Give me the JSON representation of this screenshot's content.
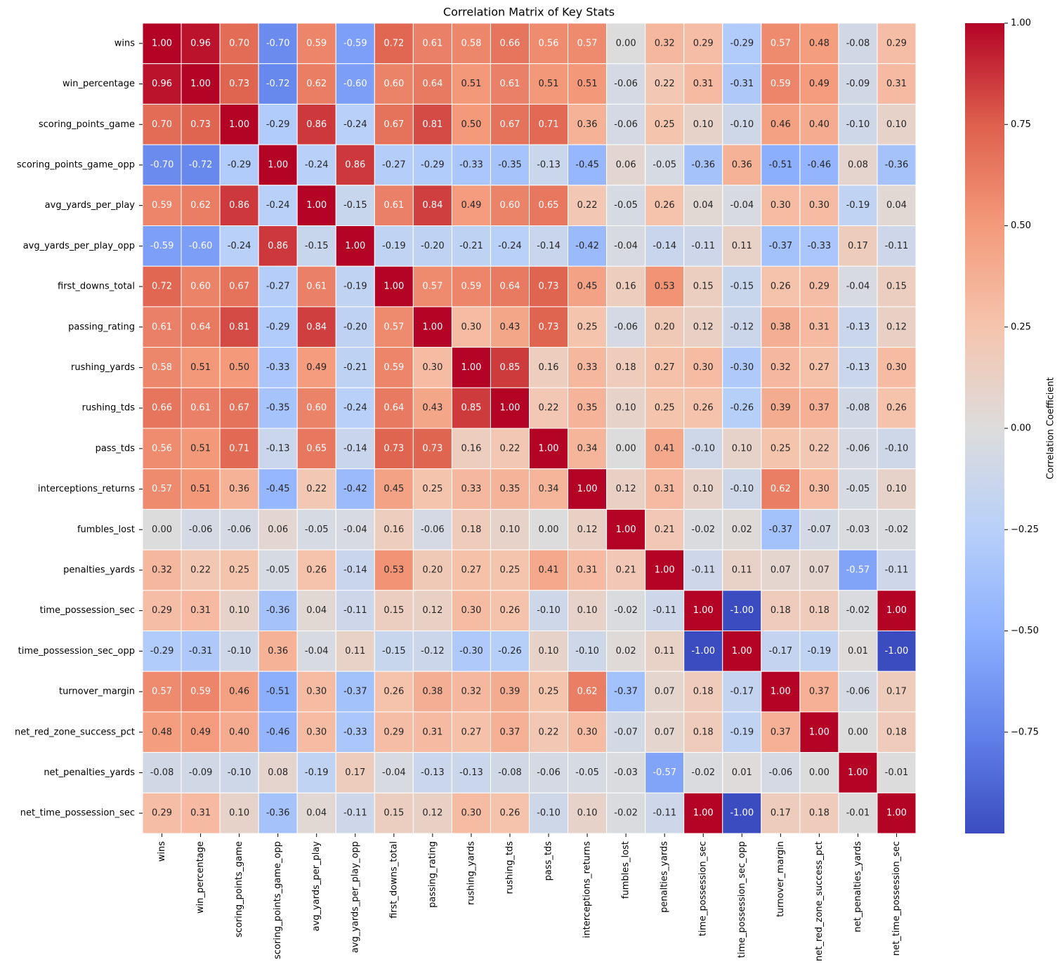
{
  "chart_data": {
    "type": "heatmap",
    "title": "Correlation Matrix of Key Stats",
    "x": [
      "wins",
      "win_percentage",
      "scoring_points_game",
      "scoring_points_game_opp",
      "avg_yards_per_play",
      "avg_yards_per_play_opp",
      "first_downs_total",
      "passing_rating",
      "rushing_yards",
      "rushing_tds",
      "pass_tds",
      "interceptions_returns",
      "fumbles_lost",
      "penalties_yards",
      "time_possession_sec",
      "time_possession_sec_opp",
      "turnover_margin",
      "net_red_zone_success_pct",
      "net_penalties_yards",
      "net_time_possession_sec"
    ],
    "y": [
      "wins",
      "win_percentage",
      "scoring_points_game",
      "scoring_points_game_opp",
      "avg_yards_per_play",
      "avg_yards_per_play_opp",
      "first_downs_total",
      "passing_rating",
      "rushing_yards",
      "rushing_tds",
      "pass_tds",
      "interceptions_returns",
      "fumbles_lost",
      "penalties_yards",
      "time_possession_sec",
      "time_possession_sec_opp",
      "turnover_margin",
      "net_red_zone_success_pct",
      "net_penalties_yards",
      "net_time_possession_sec"
    ],
    "values": [
      [
        1.0,
        0.96,
        0.7,
        -0.7,
        0.59,
        -0.59,
        0.72,
        0.61,
        0.58,
        0.66,
        0.56,
        0.57,
        0.0,
        0.32,
        0.29,
        -0.29,
        0.57,
        0.48,
        -0.08,
        0.29
      ],
      [
        0.96,
        1.0,
        0.73,
        -0.72,
        0.62,
        -0.6,
        0.6,
        0.64,
        0.51,
        0.61,
        0.51,
        0.51,
        -0.06,
        0.22,
        0.31,
        -0.31,
        0.59,
        0.49,
        -0.09,
        0.31
      ],
      [
        0.7,
        0.73,
        1.0,
        -0.29,
        0.86,
        -0.24,
        0.67,
        0.81,
        0.5,
        0.67,
        0.71,
        0.36,
        -0.06,
        0.25,
        0.1,
        -0.1,
        0.46,
        0.4,
        -0.1,
        0.1
      ],
      [
        -0.7,
        -0.72,
        -0.29,
        1.0,
        -0.24,
        0.86,
        -0.27,
        -0.29,
        -0.33,
        -0.35,
        -0.13,
        -0.45,
        0.06,
        -0.05,
        -0.36,
        0.36,
        -0.51,
        -0.46,
        0.08,
        -0.36
      ],
      [
        0.59,
        0.62,
        0.86,
        -0.24,
        1.0,
        -0.15,
        0.61,
        0.84,
        0.49,
        0.6,
        0.65,
        0.22,
        -0.05,
        0.26,
        0.04,
        -0.04,
        0.3,
        0.3,
        -0.19,
        0.04
      ],
      [
        -0.59,
        -0.6,
        -0.24,
        0.86,
        -0.15,
        1.0,
        -0.19,
        -0.2,
        -0.21,
        -0.24,
        -0.14,
        -0.42,
        -0.04,
        -0.14,
        -0.11,
        0.11,
        -0.37,
        -0.33,
        0.17,
        -0.11
      ],
      [
        0.72,
        0.6,
        0.67,
        -0.27,
        0.61,
        -0.19,
        1.0,
        0.57,
        0.59,
        0.64,
        0.73,
        0.45,
        0.16,
        0.53,
        0.15,
        -0.15,
        0.26,
        0.29,
        -0.04,
        0.15
      ],
      [
        0.61,
        0.64,
        0.81,
        -0.29,
        0.84,
        -0.2,
        0.57,
        1.0,
        0.3,
        0.43,
        0.73,
        0.25,
        -0.06,
        0.2,
        0.12,
        -0.12,
        0.38,
        0.31,
        -0.13,
        0.12
      ],
      [
        0.58,
        0.51,
        0.5,
        -0.33,
        0.49,
        -0.21,
        0.59,
        0.3,
        1.0,
        0.85,
        0.16,
        0.33,
        0.18,
        0.27,
        0.3,
        -0.3,
        0.32,
        0.27,
        -0.13,
        0.3
      ],
      [
        0.66,
        0.61,
        0.67,
        -0.35,
        0.6,
        -0.24,
        0.64,
        0.43,
        0.85,
        1.0,
        0.22,
        0.35,
        0.1,
        0.25,
        0.26,
        -0.26,
        0.39,
        0.37,
        -0.08,
        0.26
      ],
      [
        0.56,
        0.51,
        0.71,
        -0.13,
        0.65,
        -0.14,
        0.73,
        0.73,
        0.16,
        0.22,
        1.0,
        0.34,
        0.0,
        0.41,
        -0.1,
        0.1,
        0.25,
        0.22,
        -0.06,
        -0.1
      ],
      [
        0.57,
        0.51,
        0.36,
        -0.45,
        0.22,
        -0.42,
        0.45,
        0.25,
        0.33,
        0.35,
        0.34,
        1.0,
        0.12,
        0.31,
        0.1,
        -0.1,
        0.62,
        0.3,
        -0.05,
        0.1
      ],
      [
        0.0,
        -0.06,
        -0.06,
        0.06,
        -0.05,
        -0.04,
        0.16,
        -0.06,
        0.18,
        0.1,
        0.0,
        0.12,
        1.0,
        0.21,
        -0.02,
        0.02,
        -0.37,
        -0.07,
        -0.03,
        -0.02
      ],
      [
        0.32,
        0.22,
        0.25,
        -0.05,
        0.26,
        -0.14,
        0.53,
        0.2,
        0.27,
        0.25,
        0.41,
        0.31,
        0.21,
        1.0,
        -0.11,
        0.11,
        0.07,
        0.07,
        -0.57,
        -0.11
      ],
      [
        0.29,
        0.31,
        0.1,
        -0.36,
        0.04,
        -0.11,
        0.15,
        0.12,
        0.3,
        0.26,
        -0.1,
        0.1,
        -0.02,
        -0.11,
        1.0,
        -1.0,
        0.18,
        0.18,
        -0.02,
        1.0
      ],
      [
        -0.29,
        -0.31,
        -0.1,
        0.36,
        -0.04,
        0.11,
        -0.15,
        -0.12,
        -0.3,
        -0.26,
        0.1,
        -0.1,
        0.02,
        0.11,
        -1.0,
        1.0,
        -0.17,
        -0.19,
        0.01,
        -1.0
      ],
      [
        0.57,
        0.59,
        0.46,
        -0.51,
        0.3,
        -0.37,
        0.26,
        0.38,
        0.32,
        0.39,
        0.25,
        0.62,
        -0.37,
        0.07,
        0.18,
        -0.17,
        1.0,
        0.37,
        -0.06,
        0.17
      ],
      [
        0.48,
        0.49,
        0.4,
        -0.46,
        0.3,
        -0.33,
        0.29,
        0.31,
        0.27,
        0.37,
        0.22,
        0.3,
        -0.07,
        0.07,
        0.18,
        -0.19,
        0.37,
        1.0,
        0.0,
        0.18
      ],
      [
        -0.08,
        -0.09,
        -0.1,
        0.08,
        -0.19,
        0.17,
        -0.04,
        -0.13,
        -0.13,
        -0.08,
        -0.06,
        -0.05,
        -0.03,
        -0.57,
        -0.02,
        0.01,
        -0.06,
        0.0,
        1.0,
        -0.01
      ],
      [
        0.29,
        0.31,
        0.1,
        -0.36,
        0.04,
        -0.11,
        0.15,
        0.12,
        0.3,
        0.26,
        -0.1,
        0.1,
        -0.02,
        -0.11,
        1.0,
        -1.0,
        0.17,
        0.18,
        -0.01,
        1.0
      ]
    ],
    "value_labels": [
      [
        "1.00",
        "0.96",
        "0.70",
        "-0.70",
        "0.59",
        "-0.59",
        "0.72",
        "0.61",
        "0.58",
        "0.66",
        "0.56",
        "0.57",
        "0.00",
        "0.32",
        "0.29",
        "-0.29",
        "0.57",
        "0.48",
        "-0.08",
        "0.29"
      ],
      [
        "0.96",
        "1.00",
        "0.73",
        "-0.72",
        "0.62",
        "-0.60",
        "0.60",
        "0.64",
        "0.51",
        "0.61",
        "0.51",
        "0.51",
        "-0.06",
        "0.22",
        "0.31",
        "-0.31",
        "0.59",
        "0.49",
        "-0.09",
        "0.31"
      ],
      [
        "0.70",
        "0.73",
        "1.00",
        "-0.29",
        "0.86",
        "-0.24",
        "0.67",
        "0.81",
        "0.50",
        "0.67",
        "0.71",
        "0.36",
        "-0.06",
        "0.25",
        "0.10",
        "-0.10",
        "0.46",
        "0.40",
        "-0.10",
        "0.10"
      ],
      [
        "-0.70",
        "-0.72",
        "-0.29",
        "1.00",
        "-0.24",
        "0.86",
        "-0.27",
        "-0.29",
        "-0.33",
        "-0.35",
        "-0.13",
        "-0.45",
        "0.06",
        "-0.05",
        "-0.36",
        "0.36",
        "-0.51",
        "-0.46",
        "0.08",
        "-0.36"
      ],
      [
        "0.59",
        "0.62",
        "0.86",
        "-0.24",
        "1.00",
        "-0.15",
        "0.61",
        "0.84",
        "0.49",
        "0.60",
        "0.65",
        "0.22",
        "-0.05",
        "0.26",
        "0.04",
        "-0.04",
        "0.30",
        "0.30",
        "-0.19",
        "0.04"
      ],
      [
        "-0.59",
        "-0.60",
        "-0.24",
        "0.86",
        "-0.15",
        "1.00",
        "-0.19",
        "-0.20",
        "-0.21",
        "-0.24",
        "-0.14",
        "-0.42",
        "-0.04",
        "-0.14",
        "-0.11",
        "0.11",
        "-0.37",
        "-0.33",
        "0.17",
        "-0.11"
      ],
      [
        "0.72",
        "0.60",
        "0.67",
        "-0.27",
        "0.61",
        "-0.19",
        "1.00",
        "0.57",
        "0.59",
        "0.64",
        "0.73",
        "0.45",
        "0.16",
        "0.53",
        "0.15",
        "-0.15",
        "0.26",
        "0.29",
        "-0.04",
        "0.15"
      ],
      [
        "0.61",
        "0.64",
        "0.81",
        "-0.29",
        "0.84",
        "-0.20",
        "0.57",
        "1.00",
        "0.30",
        "0.43",
        "0.73",
        "0.25",
        "-0.06",
        "0.20",
        "0.12",
        "-0.12",
        "0.38",
        "0.31",
        "-0.13",
        "0.12"
      ],
      [
        "0.58",
        "0.51",
        "0.50",
        "-0.33",
        "0.49",
        "-0.21",
        "0.59",
        "0.30",
        "1.00",
        "0.85",
        "0.16",
        "0.33",
        "0.18",
        "0.27",
        "0.30",
        "-0.30",
        "0.32",
        "0.27",
        "-0.13",
        "0.30"
      ],
      [
        "0.66",
        "0.61",
        "0.67",
        "-0.35",
        "0.60",
        "-0.24",
        "0.64",
        "0.43",
        "0.85",
        "1.00",
        "0.22",
        "0.35",
        "0.10",
        "0.25",
        "0.26",
        "-0.26",
        "0.39",
        "0.37",
        "-0.08",
        "0.26"
      ],
      [
        "0.56",
        "0.51",
        "0.71",
        "-0.13",
        "0.65",
        "-0.14",
        "0.73",
        "0.73",
        "0.16",
        "0.22",
        "1.00",
        "0.34",
        "0.00",
        "0.41",
        "-0.10",
        "0.10",
        "0.25",
        "0.22",
        "-0.06",
        "-0.10"
      ],
      [
        "0.57",
        "0.51",
        "0.36",
        "-0.45",
        "0.22",
        "-0.42",
        "0.45",
        "0.25",
        "0.33",
        "0.35",
        "0.34",
        "1.00",
        "0.12",
        "0.31",
        "0.10",
        "-0.10",
        "0.62",
        "0.30",
        "-0.05",
        "0.10"
      ],
      [
        "0.00",
        "-0.06",
        "-0.06",
        "0.06",
        "-0.05",
        "-0.04",
        "0.16",
        "-0.06",
        "0.18",
        "0.10",
        "0.00",
        "0.12",
        "1.00",
        "0.21",
        "-0.02",
        "0.02",
        "-0.37",
        "-0.07",
        "-0.03",
        "-0.02"
      ],
      [
        "0.32",
        "0.22",
        "0.25",
        "-0.05",
        "0.26",
        "-0.14",
        "0.53",
        "0.20",
        "0.27",
        "0.25",
        "0.41",
        "0.31",
        "0.21",
        "1.00",
        "-0.11",
        "0.11",
        "0.07",
        "0.07",
        "-0.57",
        "-0.11"
      ],
      [
        "0.29",
        "0.31",
        "0.10",
        "-0.36",
        "0.04",
        "-0.11",
        "0.15",
        "0.12",
        "0.30",
        "0.26",
        "-0.10",
        "0.10",
        "-0.02",
        "-0.11",
        "1.00",
        "-1.00",
        "0.18",
        "0.18",
        "-0.02",
        "1.00"
      ],
      [
        "-0.29",
        "-0.31",
        "-0.10",
        "0.36",
        "-0.04",
        "0.11",
        "-0.15",
        "-0.12",
        "-0.30",
        "-0.26",
        "0.10",
        "-0.10",
        "0.02",
        "0.11",
        "-1.00",
        "1.00",
        "-0.17",
        "-0.19",
        "0.01",
        "-1.00"
      ],
      [
        "0.57",
        "0.59",
        "0.46",
        "-0.51",
        "0.30",
        "-0.37",
        "0.26",
        "0.38",
        "0.32",
        "0.39",
        "0.25",
        "0.62",
        "-0.37",
        "0.07",
        "0.18",
        "-0.17",
        "1.00",
        "0.37",
        "-0.06",
        "0.17"
      ],
      [
        "0.48",
        "0.49",
        "0.40",
        "-0.46",
        "0.30",
        "-0.33",
        "0.29",
        "0.31",
        "0.27",
        "0.37",
        "0.22",
        "0.30",
        "-0.07",
        "0.07",
        "0.18",
        "-0.19",
        "0.37",
        "1.00",
        "0.00",
        "0.18"
      ],
      [
        "-0.08",
        "-0.09",
        "-0.10",
        "0.08",
        "-0.19",
        "0.17",
        "-0.04",
        "-0.13",
        "-0.13",
        "-0.08",
        "-0.06",
        "-0.05",
        "-0.03",
        "-0.57",
        "-0.02",
        "0.01",
        "-0.06",
        "0.00",
        "1.00",
        "-0.01"
      ],
      [
        "0.29",
        "0.31",
        "0.10",
        "-0.36",
        "0.04",
        "-0.11",
        "0.15",
        "0.12",
        "0.30",
        "0.26",
        "-0.10",
        "0.10",
        "-0.02",
        "-0.11",
        "1.00",
        "-1.00",
        "0.17",
        "0.18",
        "-0.01",
        "1.00"
      ]
    ],
    "colormap": "coolwarm",
    "clim": [
      -1,
      1
    ],
    "colorbar_label": "Correlation Coefficient",
    "colorbar_ticks": [
      {
        "value": 1,
        "label": "1.00"
      },
      {
        "value": 0.75,
        "label": "0.75"
      },
      {
        "value": 0.5,
        "label": "0.50"
      },
      {
        "value": 0.25,
        "label": "0.25"
      },
      {
        "value": 0,
        "label": "0.00"
      },
      {
        "value": -0.25,
        "label": "−0.25"
      },
      {
        "value": -0.5,
        "label": "−0.50"
      },
      {
        "value": -0.75,
        "label": "−0.75"
      }
    ]
  }
}
